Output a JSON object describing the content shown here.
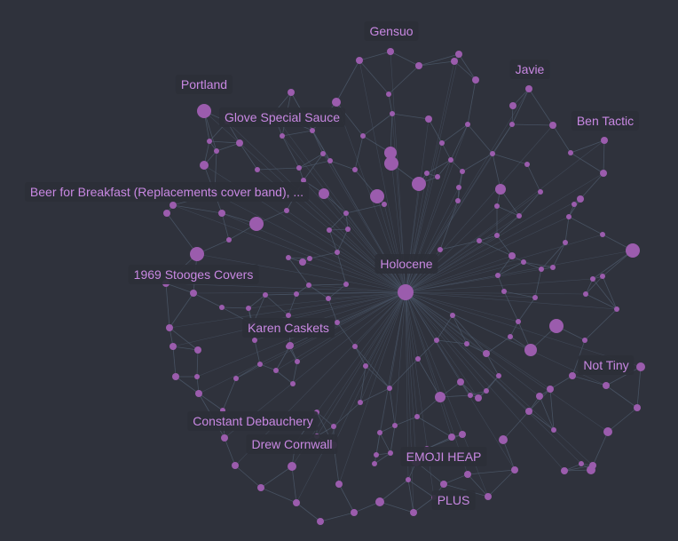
{
  "graph": {
    "colors": {
      "background": "#2f323c",
      "node": "#9b5cad",
      "edge": "#4d5a6c",
      "label_text": "#c988e3"
    },
    "labels": {
      "gensuo": "Gensuo",
      "javie": "Javie",
      "portland": "Portland",
      "glove": "Glove Special Sauce",
      "ben_tactic": "Ben Tactic",
      "beer": "Beer for Breakfast (Replacements cover band), ...",
      "holocene": "Holocene",
      "stooges": "1969 Stooges Covers",
      "karen": "Karen Caskets",
      "not_tiny": "Not Tiny",
      "constant": "Constant Debauchery",
      "drew": "Drew Cornwall",
      "emoji": "EMOJI HEAP",
      "plus": "PLUS"
    }
  }
}
